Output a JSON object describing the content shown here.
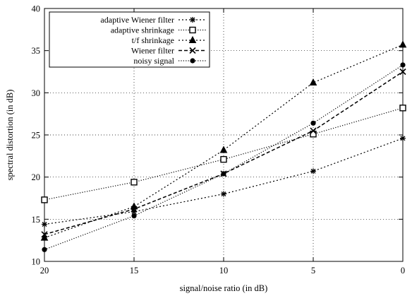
{
  "chart_data": {
    "type": "line",
    "x": [
      20,
      15,
      10,
      5,
      0
    ],
    "x_order": "descending",
    "xlabel": "signal/noise ratio (in dB)",
    "ylabel": "spectral distortion (in dB)",
    "xlim": [
      20,
      0
    ],
    "ylim": [
      10,
      40
    ],
    "xticks": [
      20,
      15,
      10,
      5,
      0
    ],
    "yticks": [
      10,
      15,
      20,
      25,
      30,
      35,
      40
    ],
    "grid": true,
    "legend_position": "top-left",
    "series": [
      {
        "name": "adaptive Wiener filter",
        "marker": "asterisk",
        "dash": "dotted",
        "values": [
          14.4,
          15.9,
          18.0,
          20.7,
          24.6
        ]
      },
      {
        "name": "adaptive shrinkage",
        "marker": "square",
        "dash": "fine-dotted",
        "values": [
          17.3,
          19.4,
          22.1,
          25.1,
          28.2
        ]
      },
      {
        "name": "t/f shrinkage",
        "marker": "triangle",
        "dash": "dotted",
        "values": [
          12.8,
          16.5,
          23.2,
          31.2,
          35.7
        ]
      },
      {
        "name": "Wiener filter",
        "marker": "x",
        "dash": "dashed",
        "values": [
          13.2,
          16.2,
          20.4,
          25.5,
          32.5
        ]
      },
      {
        "name": "noisy signal",
        "marker": "circle",
        "dash": "fine-dotted",
        "values": [
          11.4,
          15.4,
          20.4,
          26.4,
          33.3
        ]
      }
    ]
  }
}
